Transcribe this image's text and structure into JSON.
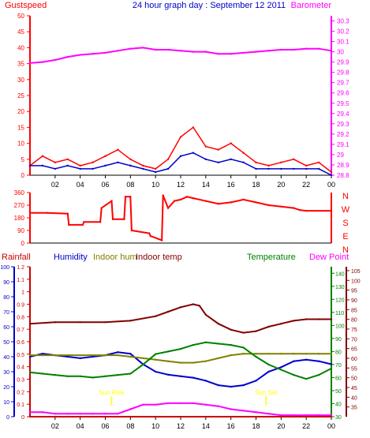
{
  "chart_data": [
    {
      "type": "line",
      "panel": "top",
      "title": "24 hour graph day : September 12 2011",
      "left_axis_label": "Gustspeed",
      "right_axis_label": "Barometer",
      "x_ticks": [
        "02",
        "04",
        "06",
        "08",
        "10",
        "12",
        "14",
        "16",
        "18",
        "20",
        "22",
        "00"
      ],
      "left_ticks": [
        0,
        5,
        10,
        15,
        20,
        25,
        30,
        35,
        40,
        45,
        50
      ],
      "left_ylim": [
        0,
        50
      ],
      "right_ticks": [
        "28.8",
        "28.9",
        "29",
        "29.1",
        "29.2",
        "29.3",
        "29.4",
        "29.5",
        "29.6",
        "29.7",
        "29.8",
        "29.9",
        "30",
        "30.1",
        "30.2",
        "30.3"
      ],
      "right_ylim": [
        28.8,
        30.35
      ],
      "grid": false,
      "colors": {
        "gust": "#ff0000",
        "wind": "#0000cc",
        "barometer": "#ff00ff",
        "title": "#0000cc"
      },
      "series": [
        {
          "name": "Barometer",
          "axis": "right",
          "x": [
            0,
            1,
            2,
            3,
            4,
            5,
            6,
            7,
            8,
            9,
            10,
            11,
            12,
            13,
            14,
            15,
            16,
            17,
            18,
            19,
            20,
            21,
            22,
            23,
            24
          ],
          "values": [
            29.89,
            29.9,
            29.92,
            29.95,
            29.97,
            29.98,
            29.99,
            30.01,
            30.03,
            30.04,
            30.02,
            30.02,
            30.01,
            30.0,
            30.0,
            29.98,
            29.98,
            29.99,
            30.0,
            30.01,
            30.02,
            30.02,
            30.03,
            30.03,
            30.01
          ]
        },
        {
          "name": "Gustspeed",
          "axis": "left",
          "x": [
            0,
            1,
            2,
            3,
            4,
            5,
            6,
            7,
            8,
            9,
            10,
            11,
            12,
            13,
            14,
            15,
            16,
            17,
            18,
            19,
            20,
            21,
            22,
            23,
            24
          ],
          "values": [
            3,
            6,
            4,
            5,
            3,
            4,
            6,
            8,
            5,
            3,
            2,
            5,
            12,
            15,
            9,
            8,
            10,
            7,
            4,
            3,
            4,
            5,
            3,
            4,
            1
          ]
        },
        {
          "series_role": "wind speed",
          "axis": "left",
          "x": [
            0,
            1,
            2,
            3,
            4,
            5,
            6,
            7,
            8,
            9,
            10,
            11,
            12,
            13,
            14,
            15,
            16,
            17,
            18,
            19,
            20,
            21,
            22,
            23,
            24
          ],
          "values": [
            3,
            3,
            2,
            3,
            2,
            2,
            3,
            4,
            3,
            2,
            1,
            2,
            6,
            7,
            5,
            4,
            5,
            4,
            2,
            2,
            2,
            2,
            2,
            2,
            0
          ]
        }
      ]
    },
    {
      "type": "line",
      "panel": "wind-direction",
      "right_axis_labels": [
        "N",
        "W",
        "S",
        "E",
        "N"
      ],
      "left_ticks": [
        0,
        90,
        180,
        270,
        360
      ],
      "ylim": [
        0,
        360
      ],
      "series": [
        {
          "axis": "left",
          "x": [
            0,
            1.4,
            3,
            3.1,
            4.2,
            4.3,
            5.6,
            5.7,
            6.5,
            6.6,
            7.5,
            7.6,
            8,
            8.1,
            9.5,
            9.6,
            10.5,
            10.6,
            11,
            11.5,
            12,
            12.5,
            13,
            14,
            15,
            16,
            17,
            18,
            19,
            20,
            21,
            21.5,
            22,
            24
          ],
          "values": [
            215,
            215,
            210,
            130,
            130,
            150,
            150,
            250,
            300,
            170,
            170,
            330,
            330,
            90,
            70,
            50,
            20,
            340,
            250,
            300,
            310,
            330,
            320,
            300,
            280,
            290,
            310,
            290,
            270,
            260,
            250,
            235,
            230,
            230
          ]
        }
      ]
    },
    {
      "type": "line",
      "panel": "bottom",
      "header_labels": [
        {
          "text": "Rainfall",
          "color": "#cc0000"
        },
        {
          "text": "Humidity",
          "color": "#0000cc"
        },
        {
          "text": "Indoor hum",
          "color": "#808000"
        },
        {
          "text": "Indoor temp",
          "color": "#800000"
        },
        {
          "text": "Temperature",
          "color": "#008000"
        },
        {
          "text": "Dew Point",
          "color": "#ff00ff"
        }
      ],
      "humidity_ticks": [
        0,
        10,
        20,
        30,
        40,
        50,
        60,
        70,
        80,
        90,
        100
      ],
      "humidity_ylim": [
        0,
        100
      ],
      "rainfall_ticks": [
        "0",
        "0.1",
        "0.2",
        "0.3",
        "0.4",
        "0.5",
        "0.6",
        "0.7",
        "0.8",
        "0.9",
        "1",
        "1.1",
        "1.2"
      ],
      "rainfall_ylim": [
        0,
        1.2
      ],
      "temp_ticks": [
        30,
        40,
        50,
        60,
        70,
        80,
        90,
        100,
        110,
        120,
        130,
        140
      ],
      "temp_ylim": [
        30,
        145
      ],
      "dewpoint_ticks": [
        35,
        40,
        45,
        50,
        55,
        60,
        65,
        70,
        75,
        80,
        85,
        90,
        95,
        100,
        105
      ],
      "dewpoint_ylim": [
        30,
        107
      ],
      "annotations": [
        "Sun Rise",
        "Sun Set"
      ],
      "sun_rise_x": 6.5,
      "sun_set_x": 18.8,
      "series": [
        {
          "name": "Indoor temp",
          "axis": "humidity",
          "x": [
            0,
            2,
            4,
            6,
            8,
            10,
            11,
            12,
            13,
            13.5,
            14,
            15,
            16,
            17,
            18,
            19,
            20,
            21,
            22,
            23,
            24
          ],
          "values": [
            62,
            63,
            63,
            63,
            64,
            67,
            70,
            73,
            75,
            74,
            68,
            62,
            58,
            56,
            57,
            60,
            62,
            64,
            65,
            65,
            65
          ]
        },
        {
          "name": "Humidity",
          "axis": "humidity",
          "x": [
            0,
            1,
            2,
            3,
            4,
            5,
            6,
            7,
            8,
            9,
            10,
            11,
            12,
            13,
            14,
            15,
            16,
            17,
            18,
            19,
            20,
            21,
            22,
            23,
            24
          ],
          "values": [
            40,
            42,
            41,
            40,
            39,
            40,
            41,
            43,
            42,
            35,
            30,
            28,
            27,
            26,
            24,
            21,
            20,
            21,
            24,
            30,
            33,
            37,
            38,
            37,
            35
          ]
        },
        {
          "name": "Indoor hum",
          "axis": "humidity",
          "x": [
            0,
            1,
            2,
            3,
            4,
            5,
            6,
            7,
            8,
            9,
            10,
            11,
            12,
            13,
            14,
            15,
            16,
            17,
            18,
            19,
            20,
            21,
            22,
            23,
            24
          ],
          "values": [
            41,
            41,
            41,
            41,
            41,
            41,
            41,
            41,
            40,
            39,
            38,
            37,
            36,
            36,
            37,
            39,
            41,
            42,
            42,
            42,
            42,
            42,
            42,
            42,
            42
          ]
        },
        {
          "name": "Temperature",
          "axis": "temp",
          "x": [
            0,
            1,
            2,
            3,
            4,
            5,
            6,
            7,
            8,
            9,
            10,
            11,
            12,
            13,
            14,
            15,
            16,
            17,
            18,
            19,
            20,
            21,
            22,
            23,
            24
          ],
          "values": [
            64,
            63,
            62,
            61,
            61,
            60,
            61,
            62,
            63,
            70,
            78,
            80,
            82,
            85,
            87,
            86,
            85,
            83,
            76,
            70,
            66,
            62,
            59,
            62,
            67
          ]
        },
        {
          "name": "Dew Point",
          "axis": "humidity",
          "x": [
            0,
            1,
            2,
            3,
            4,
            5,
            6,
            7,
            8,
            9,
            10,
            11,
            12,
            13,
            14,
            15,
            16,
            17,
            18,
            19,
            20,
            21,
            22,
            23,
            24
          ],
          "values": [
            3,
            3,
            2,
            2,
            2,
            2,
            2,
            2,
            5,
            8,
            8,
            9,
            9,
            9,
            8,
            7,
            5,
            4,
            3,
            2,
            1,
            1,
            1,
            1,
            1
          ]
        },
        {
          "name": "Rainfall",
          "axis": "rainfall",
          "x": [
            0,
            24
          ],
          "values": [
            0,
            0
          ]
        }
      ]
    }
  ]
}
